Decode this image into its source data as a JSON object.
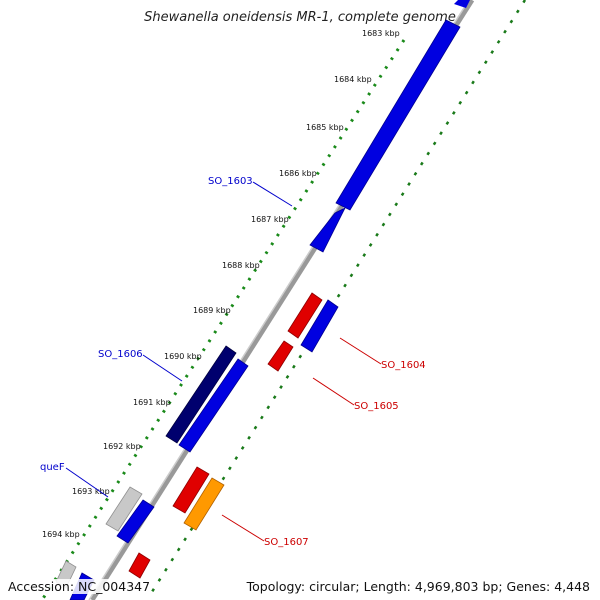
{
  "title": "Shewanella oneidensis MR-1, complete genome",
  "footer": {
    "accession": "Accession: NC_004347",
    "topology": "Topology: circular; Length: 4,969,803 bp; Genes: 4,448"
  },
  "kbp_ticks": [
    "1683 kbp",
    "1684 kbp",
    "1685 kbp",
    "1686 kbp",
    "1687 kbp",
    "1688 kbp",
    "1689 kbp",
    "1690 kbp",
    "1691 kbp",
    "1692 kbp",
    "1693 kbp",
    "1694 kbp"
  ],
  "gene_labels": {
    "so1603": "SO_1603",
    "so1606": "SO_1606",
    "quef": "queF",
    "so1604": "SO_1604",
    "so1605": "SO_1605",
    "so1607": "SO_1607"
  },
  "colors": {
    "forward_gene": "#0000e0",
    "forward_dark": "#00006e",
    "reverse_gene": "#e00000",
    "orange_gene": "#ff9900",
    "gray_gene": "#c8c8c8",
    "backbone": "#888888",
    "tick_dots": "#1a8a1a",
    "label_left": "#0000cc",
    "label_right": "#cc0000"
  }
}
